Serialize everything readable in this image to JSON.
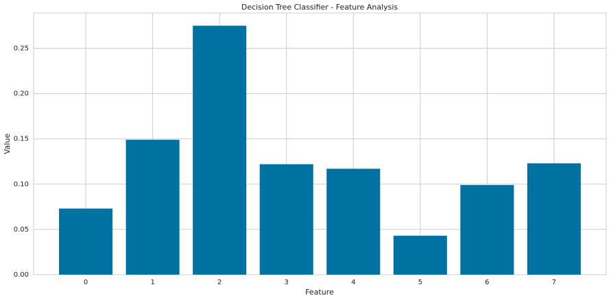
{
  "chart_data": {
    "type": "bar",
    "title": "Decision Tree Classifier - Feature Analysis",
    "x_label": "Feature",
    "y_label": "Value",
    "x": [
      0,
      1,
      2,
      3,
      4,
      5,
      6,
      7
    ],
    "values": [
      0.073,
      0.149,
      0.275,
      0.122,
      0.117,
      0.043,
      0.099,
      0.123
    ],
    "color": "#0072a2",
    "xlim": [
      -0.78,
      7.78
    ],
    "xticks": [
      0,
      1,
      2,
      3,
      4,
      5,
      6,
      7
    ],
    "ylim": [
      0,
      0.289
    ],
    "yticks": [
      {
        "value": 0,
        "label": "0.00"
      },
      {
        "value": 0.05,
        "label": "0.05"
      },
      {
        "value": 0.1,
        "label": "0.10"
      },
      {
        "value": 0.15,
        "label": "0.15"
      },
      {
        "value": 0.2,
        "label": "0.20"
      },
      {
        "value": 0.25,
        "label": "0.25"
      }
    ],
    "grid": true
  }
}
